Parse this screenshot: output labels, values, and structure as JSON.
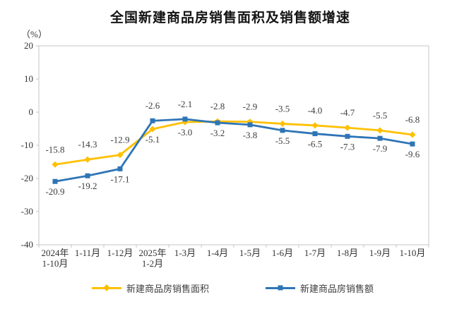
{
  "title": "全国新建商品房销售面积及销售额增速",
  "unit_label": "（%）",
  "colors": {
    "area_series": "#FFC000",
    "amount_series": "#2E75B6",
    "plot_border": "#c6c6c6",
    "tick_text": "#333333",
    "data_label_text": "#3d3d3d",
    "title_text": "#141414"
  },
  "legend": {
    "items": [
      {
        "label": "新建商品房销售面积",
        "color": "#FFC000",
        "marker": "diamond"
      },
      {
        "label": "新建商品房销售额",
        "color": "#2E75B6",
        "marker": "square"
      }
    ]
  },
  "chart_data": {
    "type": "line",
    "title": "全国新建商品房销售面积及销售额增速",
    "ylabel": "（%）",
    "xlabel": "",
    "categories": [
      "2024年\n1-10月",
      "1-11月",
      "1-12月",
      "2025年\n1-2月",
      "1-3月",
      "1-4月",
      "1-5月",
      "1-6月",
      "1-7月",
      "1-8月",
      "1-9月",
      "1-10月"
    ],
    "series": [
      {
        "name": "新建商品房销售面积",
        "color": "#FFC000",
        "marker": "diamond",
        "values": [
          -15.8,
          -14.3,
          -12.9,
          -5.1,
          -3.0,
          -2.8,
          -2.9,
          -3.5,
          -4.0,
          -4.7,
          -5.5,
          -6.8
        ],
        "label_positions": [
          "above",
          "above",
          "above",
          "below",
          "below",
          "above",
          "above",
          "above",
          "above",
          "above",
          "above",
          "above"
        ]
      },
      {
        "name": "新建商品房销售额",
        "color": "#2E75B6",
        "marker": "square",
        "values": [
          -20.9,
          -19.2,
          -17.1,
          -2.6,
          -2.1,
          -3.2,
          -3.8,
          -5.5,
          -6.5,
          -7.3,
          -7.9,
          -9.6
        ],
        "label_positions": [
          "below",
          "below",
          "below",
          "above",
          "above",
          "below",
          "below",
          "below",
          "below",
          "below",
          "below",
          "below"
        ]
      }
    ],
    "ylim": [
      -40,
      20
    ],
    "yticks": [
      20,
      10,
      0,
      -10,
      -20,
      -30,
      -40
    ],
    "grid": false,
    "legend_position": "bottom"
  }
}
